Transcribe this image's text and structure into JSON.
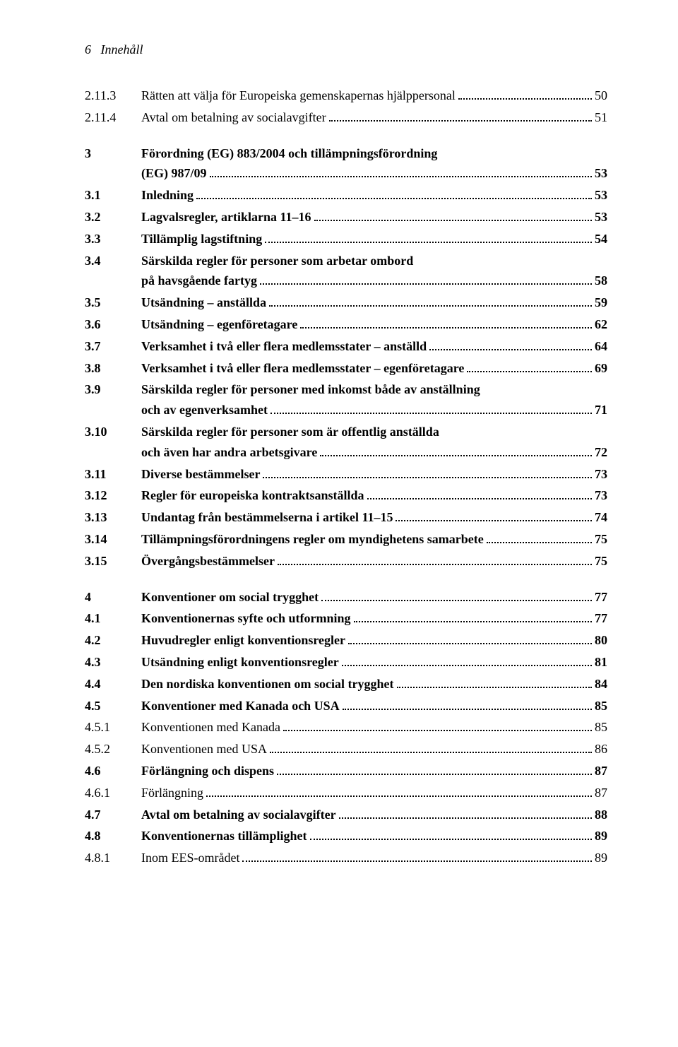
{
  "header": {
    "page_no": "6",
    "label": "Innehåll"
  },
  "toc": [
    {
      "num": "2.11.3",
      "text": "Rätten att välja för Europeiska gemenskapernas hjälppersonal",
      "page": "50",
      "bold": false
    },
    {
      "num": "2.11.4",
      "text": "Avtal om betalning av socialavgifter",
      "page": "51",
      "bold": false
    },
    {
      "spacer": true
    },
    {
      "num": "3",
      "text_line1": "Förordning (EG) 883/2004 och tillämpningsförordning",
      "text_line2": "(EG) 987/09",
      "page": "53",
      "bold": true,
      "multiline": true,
      "page_spaced": true
    },
    {
      "num": "3.1",
      "text": "Inledning",
      "page": "53",
      "bold": true
    },
    {
      "num": "3.2",
      "text": "Lagvalsregler, artiklarna 11–16",
      "page": "53",
      "bold": true
    },
    {
      "num": "3.3",
      "text": "Tillämplig lagstiftning",
      "page": "54",
      "bold": true
    },
    {
      "num": "3.4",
      "text_line1": "Särskilda regler för personer som arbetar ombord",
      "text_line2": "på havsgående fartyg",
      "page": "58",
      "bold": true,
      "multiline": true
    },
    {
      "num": "3.5",
      "text": "Utsändning – anställda",
      "page": "59",
      "bold": true
    },
    {
      "num": "3.6",
      "text": "Utsändning – egenföretagare",
      "page": "62",
      "bold": true
    },
    {
      "num": "3.7",
      "text": "Verksamhet i två eller flera medlemsstater – anställd",
      "page": "64",
      "bold": true
    },
    {
      "num": "3.8",
      "text": "Verksamhet i två eller flera medlemsstater – egenföretagare",
      "page": "69",
      "bold": true
    },
    {
      "num": "3.9",
      "text_line1": "Särskilda regler för personer med inkomst både av anställning",
      "text_line2": "och av egenverksamhet",
      "page": "71",
      "bold": true,
      "multiline": true
    },
    {
      "num": "3.10",
      "text_line1": "Särskilda regler för personer som är offentlig anställda",
      "text_line2": "och även har andra arbetsgivare",
      "page": "72",
      "bold": true,
      "multiline": true
    },
    {
      "num": "3.11",
      "text": "Diverse bestämmelser",
      "page": "73",
      "bold": true
    },
    {
      "num": "3.12",
      "text": "Regler för europeiska kontraktsanställda",
      "page": "73",
      "bold": true
    },
    {
      "num": "3.13",
      "text": "Undantag från bestämmelserna i artikel 11–15",
      "page": "74",
      "bold": true
    },
    {
      "num": "3.14",
      "text": "Tillämpningsförordningens regler om myndighetens samarbete",
      "page": "75",
      "bold": true
    },
    {
      "num": "3.15",
      "text": "Övergångsbestämmelser",
      "page": "75",
      "bold": true
    },
    {
      "spacer": true
    },
    {
      "num": "4",
      "text": "Konventioner om social trygghet",
      "page": "77",
      "bold": true,
      "page_spaced": true
    },
    {
      "num": "4.1",
      "text": "Konventionernas syfte och utformning",
      "page": "77",
      "bold": true
    },
    {
      "num": "4.2",
      "text": "Huvudregler enligt konventionsregler",
      "page": "80",
      "bold": true
    },
    {
      "num": "4.3",
      "text": "Utsändning enligt konventionsregler",
      "page": "81",
      "bold": true
    },
    {
      "num": "4.4",
      "text": "Den nordiska konventionen om social trygghet",
      "page": "84",
      "bold": true
    },
    {
      "num": "4.5",
      "text": "Konventioner med Kanada och USA",
      "page": "85",
      "bold": true
    },
    {
      "num": "4.5.1",
      "text": "Konventionen med Kanada",
      "page": "85",
      "bold": false
    },
    {
      "num": "4.5.2",
      "text": "Konventionen med USA",
      "page": "86",
      "bold": false
    },
    {
      "num": "4.6",
      "text": "Förlängning och dispens",
      "page": "87",
      "bold": true
    },
    {
      "num": "4.6.1",
      "text": "Förlängning",
      "page": "87",
      "bold": false
    },
    {
      "num": "4.7",
      "text": "Avtal om betalning av socialavgifter",
      "page": "88",
      "bold": true
    },
    {
      "num": "4.8",
      "text": "Konventionernas tillämplighet",
      "page": "89",
      "bold": true
    },
    {
      "num": "4.8.1",
      "text": "Inom EES-området",
      "page": "89",
      "bold": false
    }
  ]
}
